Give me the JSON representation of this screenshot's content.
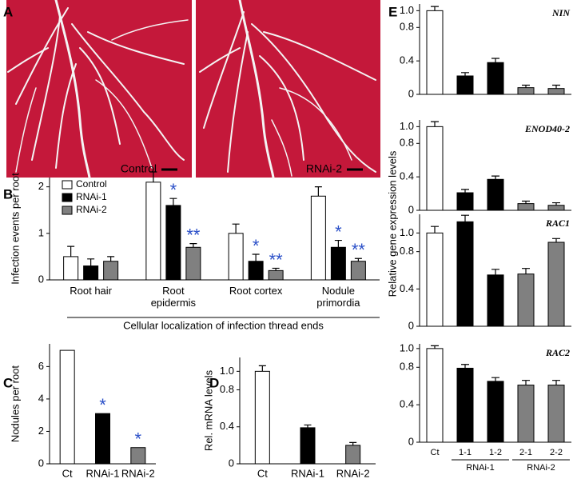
{
  "panel_labels": [
    "A",
    "B",
    "C",
    "D",
    "E"
  ],
  "photos": [
    "Control",
    "RNAi-2"
  ],
  "e_y_label": "Relative gene expression levels",
  "chart_data": [
    {
      "type": "bar",
      "y_label": "Infection events per root",
      "x_label": "Cellular localization of infection thread ends",
      "categories": [
        "Root hair",
        "Root epidermis",
        "Root cortex",
        "Nodule primordia"
      ],
      "series": [
        {
          "name": "Control",
          "color": "#ffffff",
          "values": [
            0.5,
            2.1,
            1.0,
            1.8
          ],
          "errors": [
            0.22,
            0.22,
            0.2,
            0.2
          ],
          "marks": [
            null,
            null,
            null,
            null
          ]
        },
        {
          "name": "RNAi-1",
          "color": "#000000",
          "values": [
            0.3,
            1.6,
            0.4,
            0.7
          ],
          "errors": [
            0.15,
            0.15,
            0.15,
            0.15
          ],
          "marks": [
            null,
            "*",
            "*",
            "*"
          ]
        },
        {
          "name": "RNAi-2",
          "color": "#808080",
          "values": [
            0.4,
            0.7,
            0.2,
            0.4
          ],
          "errors": [
            0.1,
            0.08,
            0.05,
            0.06
          ],
          "marks": [
            null,
            "**",
            "**",
            "**"
          ]
        }
      ],
      "ylim": [
        0,
        2.2
      ],
      "yticks": [
        0,
        1,
        2
      ],
      "legend": "top-left"
    },
    {
      "type": "bar",
      "y_label": "Nodules per root",
      "categories": [
        "Ct",
        "RNAi-1",
        "RNAi-2"
      ],
      "values": [
        7,
        3.1,
        1.0
      ],
      "colors": [
        "#ffffff",
        "#000000",
        "#808080"
      ],
      "marks": [
        null,
        "*",
        "*"
      ],
      "ylim": [
        0,
        7.4
      ],
      "yticks": [
        0,
        2,
        4,
        6
      ]
    },
    {
      "type": "bar",
      "y_label": "Rel. mRNA levels",
      "categories": [
        "Ct",
        "RNAi-1",
        "RNAi-2"
      ],
      "values": [
        1.0,
        0.39,
        0.2
      ],
      "errors": [
        0.06,
        0.03,
        0.03
      ],
      "colors": [
        "#ffffff",
        "#000000",
        "#808080"
      ],
      "ylim": [
        0,
        1.15
      ],
      "yticks": [
        0,
        0.4,
        0.8,
        {
          "value": 1,
          "label": "1.0"
        }
      ]
    },
    {
      "type": "bar",
      "title": "NIN",
      "values": [
        1.0,
        0.22,
        0.38,
        0.08,
        0.07
      ],
      "errors": [
        0.05,
        0.04,
        0.05,
        0.03,
        0.04
      ],
      "colors": [
        "#ffffff",
        "#000000",
        "#000000",
        "#808080",
        "#808080"
      ],
      "ylim": [
        0,
        1.08
      ],
      "yticks": [
        0,
        0.4,
        0.8,
        {
          "value": 1,
          "label": "1.0"
        }
      ]
    },
    {
      "type": "bar",
      "title": "ENOD40-2",
      "values": [
        1.0,
        0.21,
        0.37,
        0.08,
        0.06
      ],
      "errors": [
        0.06,
        0.04,
        0.04,
        0.03,
        0.03
      ],
      "colors": [
        "#ffffff",
        "#000000",
        "#000000",
        "#808080",
        "#808080"
      ],
      "ylim": [
        0,
        1.08
      ],
      "yticks": [
        0,
        0.4,
        0.8,
        {
          "value": 1,
          "label": "1.0"
        }
      ]
    },
    {
      "type": "bar",
      "title": "RAC1",
      "values": [
        1.0,
        1.12,
        0.55,
        0.56,
        0.9
      ],
      "errors": [
        0.07,
        0.07,
        0.06,
        0.06,
        0.04
      ],
      "colors": [
        "#ffffff",
        "#000000",
        "#000000",
        "#808080",
        "#808080"
      ],
      "ylim": [
        0,
        1.2
      ],
      "yticks": [
        0,
        0.4,
        0.8,
        {
          "value": 1,
          "label": "1.0"
        }
      ]
    },
    {
      "type": "bar",
      "title": "RAC2",
      "values": [
        1.0,
        0.79,
        0.65,
        0.61,
        0.61
      ],
      "errors": [
        0.03,
        0.04,
        0.04,
        0.05,
        0.05
      ],
      "colors": [
        "#ffffff",
        "#000000",
        "#000000",
        "#808080",
        "#808080"
      ],
      "categories": [
        "Ct",
        "1-1",
        "1-2",
        "2-1",
        "2-2"
      ],
      "groups": [
        "RNAi-1",
        "RNAi-2"
      ],
      "ylim": [
        0,
        1.05
      ],
      "yticks": [
        0,
        0.4,
        0.8,
        {
          "value": 1,
          "label": "1.0"
        }
      ]
    }
  ]
}
